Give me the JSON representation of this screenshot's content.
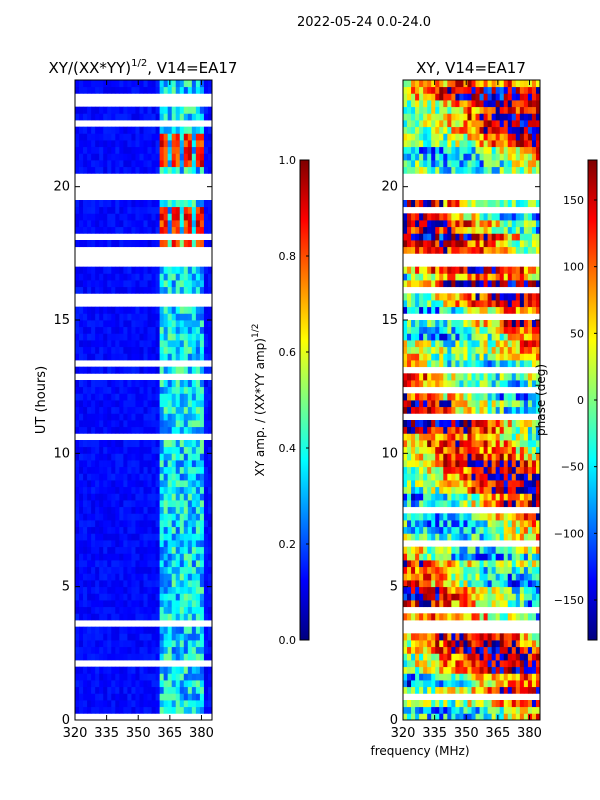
{
  "figure_title": "2022-05-24 0.0-24.0",
  "shared_xlabel": "frequency (MHz)",
  "chart_data": [
    {
      "type": "heatmap",
      "title": "XY/(XX*YY)",
      "title_sup": "1/2",
      "title_suffix": ", V14=EA17",
      "xlabel": "",
      "ylabel": "UT (hours)",
      "xlim": [
        320,
        385
      ],
      "ylim": [
        0,
        24
      ],
      "xticks": [
        320,
        335,
        350,
        365,
        380
      ],
      "yticks": [
        0,
        5,
        10,
        15,
        20
      ],
      "colormap": "jet",
      "data_gaps_hours": [
        [
          19.4,
          20.6
        ],
        [
          3.5,
          3.8
        ]
      ],
      "active_band_mhz": [
        361,
        382
      ],
      "strong_band_hours": [
        [
          17.8,
          19.2
        ],
        [
          20.8,
          22.0
        ]
      ],
      "colorbar": {
        "label_main": "XY amp. / (XX*YY amp)",
        "label_sup": "1/2",
        "range": [
          0.0,
          1.0
        ],
        "ticks": [
          "0.0",
          "0.2",
          "0.4",
          "0.6",
          "0.8",
          "1.0"
        ],
        "tick_values": [
          0.0,
          0.2,
          0.4,
          0.6,
          0.8,
          1.0
        ]
      }
    },
    {
      "type": "heatmap",
      "title": "XY, V14=EA17",
      "xlabel": "frequency (MHz)",
      "ylabel": "",
      "xlim": [
        320,
        385
      ],
      "ylim": [
        0,
        24
      ],
      "xticks": [
        320,
        335,
        350,
        365,
        380
      ],
      "yticks": [
        0,
        5,
        10,
        15,
        20
      ],
      "colormap": "jet",
      "data_gaps_hours": [
        [
          19.4,
          20.6
        ],
        [
          3.5,
          3.8
        ]
      ],
      "colorbar": {
        "label_main": "phase (deg)",
        "range": [
          -180,
          180
        ],
        "ticks": [
          "−150",
          "−100",
          "−50",
          "0",
          "50",
          "100",
          "150"
        ],
        "tick_values": [
          -150,
          -100,
          -50,
          0,
          50,
          100,
          150
        ]
      }
    }
  ]
}
